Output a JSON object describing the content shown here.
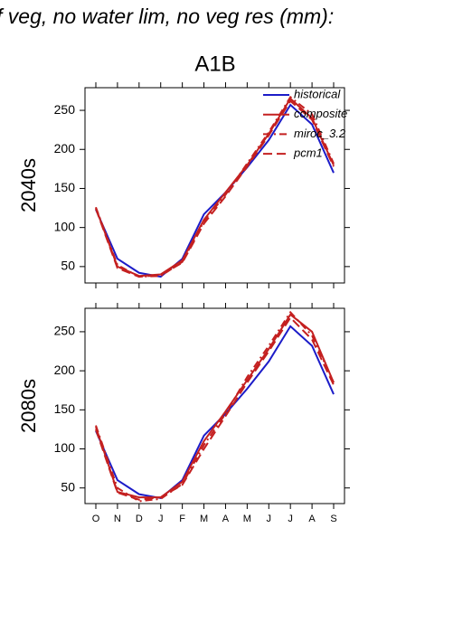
{
  "chart_data": {
    "type": "line",
    "title": "f veg, no water lim, no veg res (mm):",
    "subtitle": "A1B",
    "legend": "top right",
    "categories": [
      "O",
      "N",
      "D",
      "J",
      "F",
      "M",
      "A",
      "M",
      "J",
      "J",
      "A",
      "S"
    ],
    "series": [
      {
        "name": "historical",
        "color": "#1c1cc8",
        "dash": "solid"
      },
      {
        "name": "composite",
        "color": "#c42020",
        "dash": "solid"
      },
      {
        "name": "miroc_3.2",
        "color": "#c42020",
        "dash": "dashdot"
      },
      {
        "name": "pcm1",
        "color": "#c42020",
        "dash": "longdash"
      }
    ],
    "panels": [
      {
        "ylabel": "2040s",
        "ylim": [
          29,
          279
        ],
        "yticks": [
          50,
          100,
          150,
          200,
          250
        ],
        "values": [
          [
            123,
            60,
            42,
            37,
            60,
            117,
            145,
            177,
            212,
            257,
            232,
            170
          ],
          [
            125,
            50,
            38,
            40,
            58,
            110,
            145,
            180,
            220,
            265,
            240,
            180
          ],
          [
            126,
            52,
            37,
            38,
            56,
            108,
            142,
            182,
            222,
            267,
            245,
            182
          ],
          [
            124,
            48,
            37,
            39,
            55,
            105,
            140,
            178,
            218,
            262,
            238,
            178
          ]
        ]
      },
      {
        "ylabel": "2080s",
        "ylim": [
          30,
          280
        ],
        "yticks": [
          50,
          100,
          150,
          200,
          250
        ],
        "values": [
          [
            123,
            60,
            42,
            37,
            60,
            117,
            145,
            177,
            212,
            257,
            232,
            170
          ],
          [
            128,
            45,
            38,
            38,
            58,
            110,
            148,
            188,
            228,
            272,
            250,
            185
          ],
          [
            130,
            50,
            33,
            36,
            55,
            105,
            145,
            192,
            232,
            275,
            245,
            185
          ],
          [
            125,
            44,
            35,
            38,
            54,
            100,
            142,
            185,
            225,
            268,
            240,
            182
          ]
        ]
      }
    ]
  }
}
